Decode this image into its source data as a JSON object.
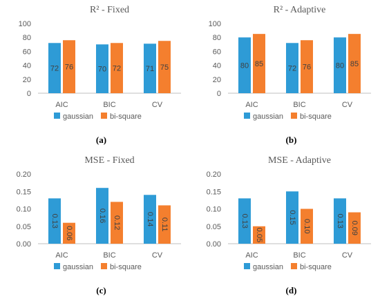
{
  "colors": {
    "gaussian": "#2E9BD6",
    "bisquare": "#F47F2E",
    "text": "#595959",
    "axis": "#BFBFBF"
  },
  "chart_data": [
    {
      "type": "bar",
      "panel": "(a)",
      "title": "R² - Fixed",
      "categories": [
        "AIC",
        "BIC",
        "CV"
      ],
      "series": [
        {
          "name": "gaussian",
          "values": [
            72,
            70,
            71
          ],
          "labels": [
            "72",
            "70",
            "71"
          ]
        },
        {
          "name": "bi-square",
          "values": [
            76,
            72,
            75
          ],
          "labels": [
            "76",
            "72",
            "75"
          ]
        }
      ],
      "ylim": [
        0,
        100
      ],
      "yticks": [
        "0",
        "20",
        "40",
        "60",
        "80",
        "100"
      ],
      "legend": "bottom",
      "grid": false
    },
    {
      "type": "bar",
      "panel": "(b)",
      "title": "R² - Adaptive",
      "categories": [
        "AIC",
        "BIC",
        "CV"
      ],
      "series": [
        {
          "name": "gaussian",
          "values": [
            80,
            72,
            80
          ],
          "labels": [
            "80",
            "72",
            "80"
          ]
        },
        {
          "name": "bi-square",
          "values": [
            85,
            76,
            85
          ],
          "labels": [
            "85",
            "76",
            "85"
          ]
        }
      ],
      "ylim": [
        0,
        100
      ],
      "yticks": [
        "0",
        "20",
        "40",
        "60",
        "80",
        "100"
      ],
      "legend": "bottom",
      "grid": false
    },
    {
      "type": "bar",
      "panel": "(c)",
      "title": "MSE - Fixed",
      "categories": [
        "AIC",
        "BIC",
        "CV"
      ],
      "series": [
        {
          "name": "gaussian",
          "values": [
            0.13,
            0.16,
            0.14
          ],
          "labels": [
            "0.13",
            "0.16",
            "0.14"
          ]
        },
        {
          "name": "bi-square",
          "values": [
            0.06,
            0.12,
            0.11
          ],
          "labels": [
            "0.06",
            "0.12",
            "0.11"
          ]
        }
      ],
      "ylim": [
        0,
        0.2
      ],
      "yticks": [
        "0.00",
        "0.05",
        "0.10",
        "0.15",
        "0.20"
      ],
      "legend": "bottom",
      "grid": false
    },
    {
      "type": "bar",
      "panel": "(d)",
      "title": "MSE - Adaptive",
      "categories": [
        "AIC",
        "BIC",
        "CV"
      ],
      "series": [
        {
          "name": "gaussian",
          "values": [
            0.13,
            0.15,
            0.13
          ],
          "labels": [
            "0.13",
            "0.15",
            "0.13"
          ]
        },
        {
          "name": "bi-square",
          "values": [
            0.05,
            0.1,
            0.09
          ],
          "labels": [
            "0.05",
            "0.10",
            "0.09"
          ]
        }
      ],
      "ylim": [
        0,
        0.2
      ],
      "yticks": [
        "0.00",
        "0.05",
        "0.10",
        "0.15",
        "0.20"
      ],
      "legend": "bottom",
      "grid": false
    }
  ]
}
